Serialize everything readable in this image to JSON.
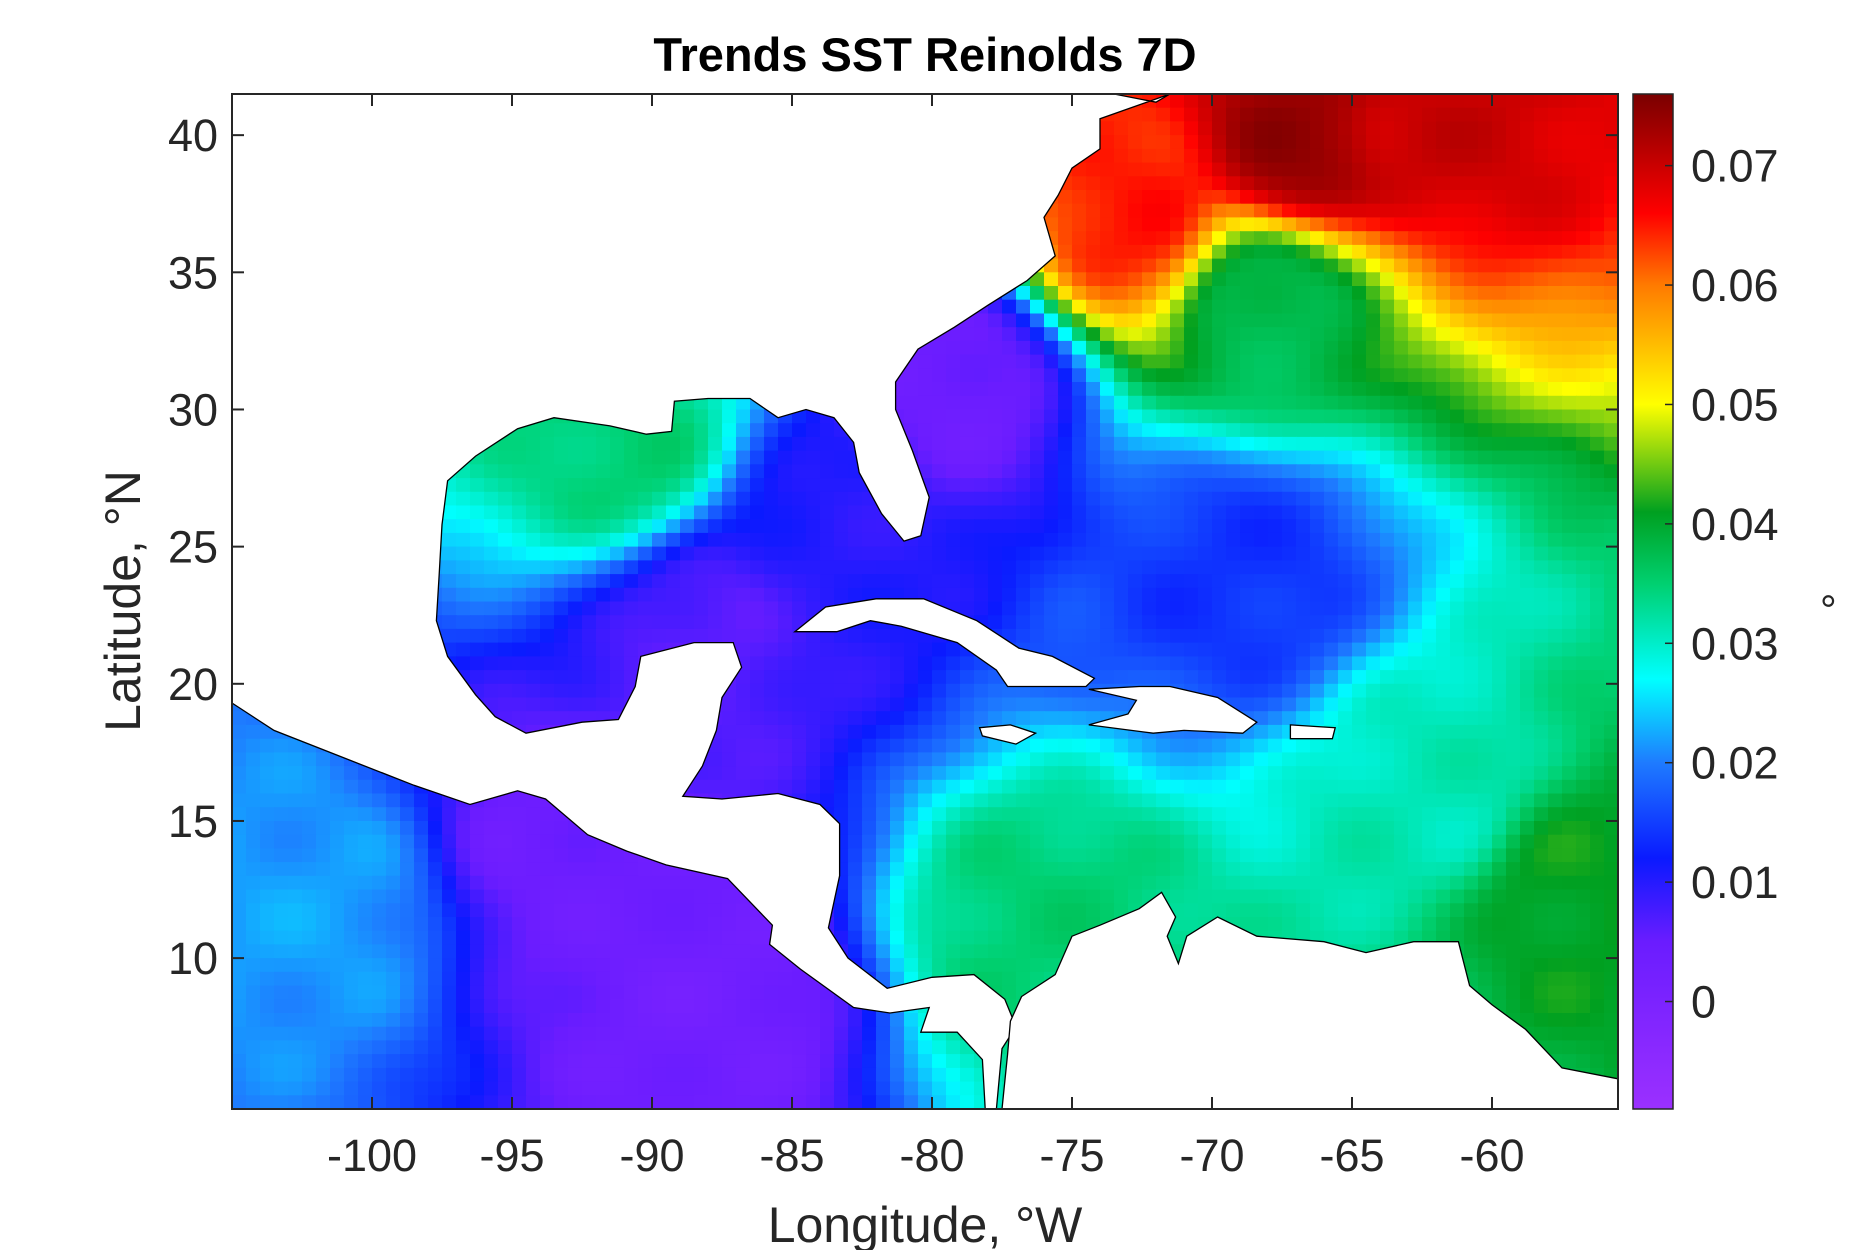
{
  "figure": {
    "title": "Trends SST Reinolds 7D",
    "xlabel": "Longitude, °W",
    "ylabel": "Latitude, °N",
    "colorbar_label": "°"
  },
  "map": {
    "lon_range": [
      -105,
      -55.5
    ],
    "lat_range": [
      4.5,
      41.5
    ],
    "xticks": [
      -100,
      -95,
      -90,
      -85,
      -80,
      -75,
      -70,
      -65,
      -60
    ],
    "xtick_labels": [
      "-100",
      "-95",
      "-90",
      "-85",
      "-80",
      "-75",
      "-70",
      "-65",
      "-60"
    ],
    "yticks": [
      10,
      15,
      20,
      25,
      30,
      35,
      40
    ],
    "ytick_labels": [
      "10",
      "15",
      "20",
      "25",
      "30",
      "35",
      "40"
    ],
    "colormap": "rainbow (purple-blue-cyan-green-yellow-red-darkred)",
    "land_color": "#ffffff",
    "coastline_color": "#000000"
  },
  "colorbar": {
    "range": [
      -0.009,
      0.076
    ],
    "ticks": [
      0,
      0.01,
      0.02,
      0.03,
      0.04,
      0.05,
      0.06,
      0.07
    ],
    "tick_labels": [
      "0",
      "0.01",
      "0.02",
      "0.03",
      "0.04",
      "0.05",
      "0.06",
      "0.07"
    ],
    "stops": [
      {
        "value": -0.009,
        "color": "#9b30ff"
      },
      {
        "value": 0.005,
        "color": "#6a1cff"
      },
      {
        "value": 0.012,
        "color": "#0a1aff"
      },
      {
        "value": 0.02,
        "color": "#1e7bff"
      },
      {
        "value": 0.027,
        "color": "#00ffff"
      },
      {
        "value": 0.035,
        "color": "#00d070"
      },
      {
        "value": 0.041,
        "color": "#00a020"
      },
      {
        "value": 0.05,
        "color": "#ffff00"
      },
      {
        "value": 0.06,
        "color": "#ff7a00"
      },
      {
        "value": 0.066,
        "color": "#ff0000"
      },
      {
        "value": 0.076,
        "color": "#7a0000"
      }
    ]
  },
  "chart_data": {
    "type": "heatmap",
    "title": "Trends SST Reinolds 7D",
    "xlabel": "Longitude, °W",
    "ylabel": "Latitude, °N",
    "xlim": [
      -105,
      -55.5
    ],
    "ylim": [
      4.5,
      41.5
    ],
    "colorbar_range": [
      -0.009,
      0.076
    ],
    "colorbar_label": "°",
    "field_features": [
      {
        "lon": -67,
        "lat": 39.5,
        "value": 0.074
      },
      {
        "lon": -73,
        "lat": 37,
        "value": 0.065
      },
      {
        "lon": -62,
        "lat": 40.5,
        "value": 0.07
      },
      {
        "lon": -57,
        "lat": 12.5,
        "value": 0.041
      },
      {
        "lon": -69,
        "lat": 24,
        "value": 0.014
      },
      {
        "lon": -79,
        "lat": 31,
        "value": 0.004
      },
      {
        "lon": -93,
        "lat": 14,
        "value": 0.004
      },
      {
        "lon": -88,
        "lat": 8.5,
        "value": 0.003
      },
      {
        "lon": -91,
        "lat": 28.5,
        "value": 0.035
      },
      {
        "lon": -68,
        "lat": 34,
        "value": 0.037
      },
      {
        "lon": -62,
        "lat": 16,
        "value": 0.031
      },
      {
        "lon": -76,
        "lat": 11,
        "value": 0.035
      },
      {
        "lon": -102,
        "lat": 12,
        "value": 0.022
      },
      {
        "lon": -88,
        "lat": 22,
        "value": 0.006
      },
      {
        "lon": -84,
        "lat": 25,
        "value": 0.01
      }
    ]
  }
}
